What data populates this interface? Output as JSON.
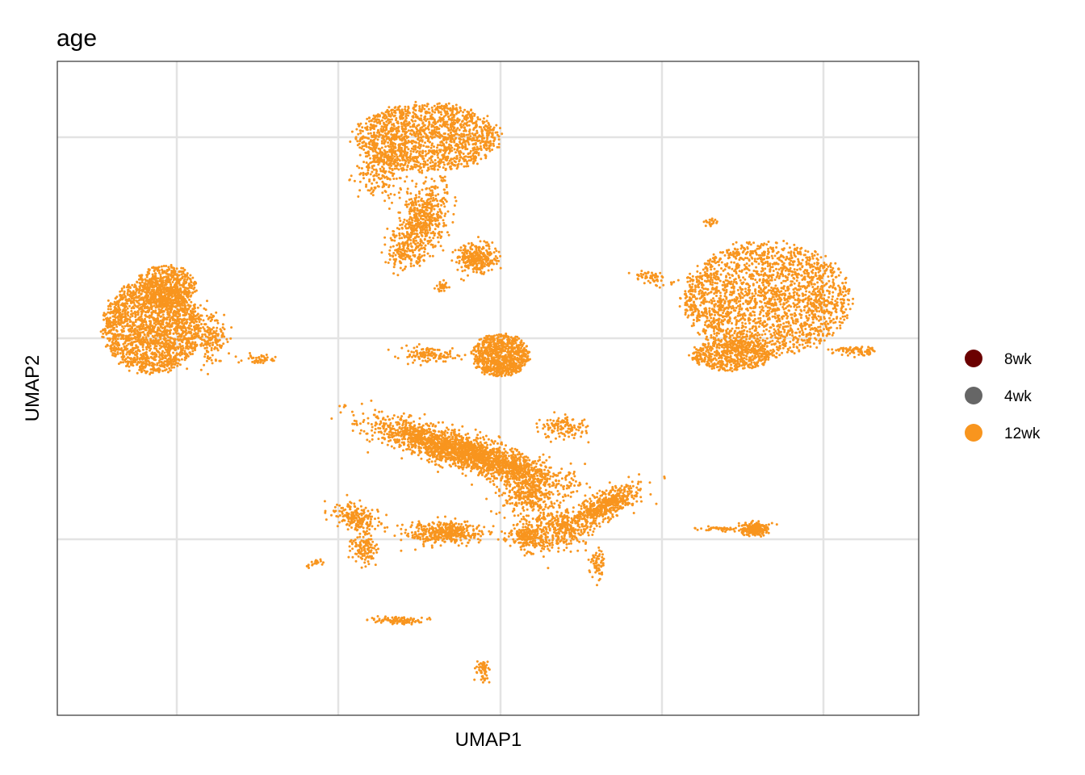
{
  "chart_data": {
    "type": "scatter",
    "title": "age",
    "xlabel": "UMAP1",
    "ylabel": "UMAP2",
    "tick_labels_shown": false,
    "grid": true,
    "legend": {
      "placement": "right",
      "entries": [
        {
          "label": "8wk",
          "color": "#6B0000"
        },
        {
          "label": "4wk",
          "color": "#666666"
        },
        {
          "label": "12wk",
          "color": "#F8951E"
        }
      ]
    },
    "point_color": "#F8951E"
  }
}
